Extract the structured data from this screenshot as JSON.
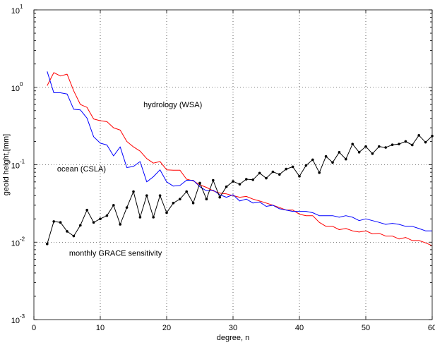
{
  "chart_data": {
    "type": "line",
    "xlabel": "degree, n",
    "ylabel": "geoid height,[mm]",
    "xlim": [
      0,
      60
    ],
    "ylim": [
      0.001,
      10
    ],
    "yscale": "log",
    "grid": true,
    "x_ticks": [
      "0",
      "10",
      "20",
      "30",
      "40",
      "50",
      "60"
    ],
    "y_ticks": [
      {
        "base": "10",
        "exp": "-3",
        "value": 0.001
      },
      {
        "base": "10",
        "exp": "-2",
        "value": 0.01
      },
      {
        "base": "10",
        "exp": "-1",
        "value": 0.1
      },
      {
        "base": "10",
        "exp": "0",
        "value": 1
      },
      {
        "base": "10",
        "exp": "1",
        "value": 10
      }
    ],
    "annotations": [
      {
        "text": "hydrology (WSA)",
        "x": 16.5,
        "y": 0.55
      },
      {
        "text": "ocean (CSLA)",
        "x": 3.5,
        "y": 0.082
      },
      {
        "text": "monthly GRACE sensitivity",
        "x": 5.3,
        "y": 0.0067
      }
    ],
    "series": [
      {
        "color": "#ff0000",
        "marker": "none",
        "x": [
          2,
          3,
          4,
          5,
          6,
          7,
          8,
          9,
          10,
          11,
          12,
          13,
          14,
          15,
          16,
          17,
          18,
          19,
          20,
          21,
          22,
          23,
          24,
          25,
          26,
          27,
          28,
          29,
          30,
          31,
          32,
          33,
          34,
          35,
          36,
          37,
          38,
          39,
          40,
          41,
          42,
          43,
          44,
          45,
          46,
          47,
          48,
          49,
          50,
          51,
          52,
          53,
          54,
          55,
          56,
          57,
          58,
          59,
          60
        ],
        "values": [
          1.05,
          1.55,
          1.4,
          1.48,
          0.9,
          0.6,
          0.55,
          0.39,
          0.37,
          0.36,
          0.3,
          0.28,
          0.2,
          0.17,
          0.15,
          0.12,
          0.105,
          0.11,
          0.086,
          0.085,
          0.085,
          0.065,
          0.062,
          0.055,
          0.051,
          0.046,
          0.043,
          0.042,
          0.04,
          0.038,
          0.039,
          0.036,
          0.034,
          0.032,
          0.03,
          0.028,
          0.026,
          0.026,
          0.023,
          0.022,
          0.022,
          0.018,
          0.016,
          0.016,
          0.0145,
          0.015,
          0.014,
          0.0135,
          0.014,
          0.0128,
          0.013,
          0.012,
          0.012,
          0.011,
          0.0115,
          0.0105,
          0.0105,
          0.0098,
          0.009
        ]
      },
      {
        "color": "#0000ff",
        "marker": "none",
        "x": [
          2,
          3,
          4,
          5,
          6,
          7,
          8,
          9,
          10,
          11,
          12,
          13,
          14,
          15,
          16,
          17,
          18,
          19,
          20,
          21,
          22,
          23,
          24,
          25,
          26,
          27,
          28,
          29,
          30,
          31,
          32,
          33,
          34,
          35,
          36,
          37,
          38,
          39,
          40,
          41,
          42,
          43,
          44,
          45,
          46,
          47,
          48,
          49,
          50,
          51,
          52,
          53,
          54,
          55,
          56,
          57,
          58,
          59,
          60
        ],
        "values": [
          1.6,
          0.85,
          0.85,
          0.82,
          0.52,
          0.51,
          0.4,
          0.23,
          0.19,
          0.18,
          0.13,
          0.17,
          0.092,
          0.095,
          0.11,
          0.06,
          0.07,
          0.086,
          0.06,
          0.053,
          0.054,
          0.063,
          0.063,
          0.052,
          0.046,
          0.047,
          0.041,
          0.038,
          0.041,
          0.034,
          0.036,
          0.032,
          0.033,
          0.029,
          0.03,
          0.027,
          0.026,
          0.025,
          0.025,
          0.025,
          0.024,
          0.022,
          0.022,
          0.022,
          0.021,
          0.022,
          0.021,
          0.019,
          0.02,
          0.019,
          0.018,
          0.017,
          0.0175,
          0.017,
          0.016,
          0.016,
          0.015,
          0.014,
          0.014
        ]
      },
      {
        "color": "#000000",
        "marker": "dot",
        "x": [
          2,
          3,
          4,
          5,
          6,
          7,
          8,
          9,
          10,
          11,
          12,
          13,
          14,
          15,
          16,
          17,
          18,
          19,
          20,
          21,
          22,
          23,
          24,
          25,
          26,
          27,
          28,
          29,
          30,
          31,
          32,
          33,
          34,
          35,
          36,
          37,
          38,
          39,
          40,
          41,
          42,
          43,
          44,
          45,
          46,
          47,
          48,
          49,
          50,
          51,
          52,
          53,
          54,
          55,
          56,
          57,
          58,
          59,
          60
        ],
        "values": [
          0.0095,
          0.0185,
          0.018,
          0.0138,
          0.012,
          0.0165,
          0.026,
          0.018,
          0.02,
          0.022,
          0.03,
          0.017,
          0.028,
          0.045,
          0.021,
          0.04,
          0.021,
          0.04,
          0.024,
          0.032,
          0.036,
          0.045,
          0.032,
          0.058,
          0.036,
          0.063,
          0.038,
          0.052,
          0.061,
          0.056,
          0.065,
          0.064,
          0.078,
          0.067,
          0.081,
          0.075,
          0.088,
          0.094,
          0.071,
          0.098,
          0.116,
          0.079,
          0.128,
          0.107,
          0.145,
          0.118,
          0.185,
          0.145,
          0.172,
          0.139,
          0.172,
          0.167,
          0.181,
          0.185,
          0.2,
          0.18,
          0.24,
          0.195,
          0.235
        ]
      }
    ]
  }
}
